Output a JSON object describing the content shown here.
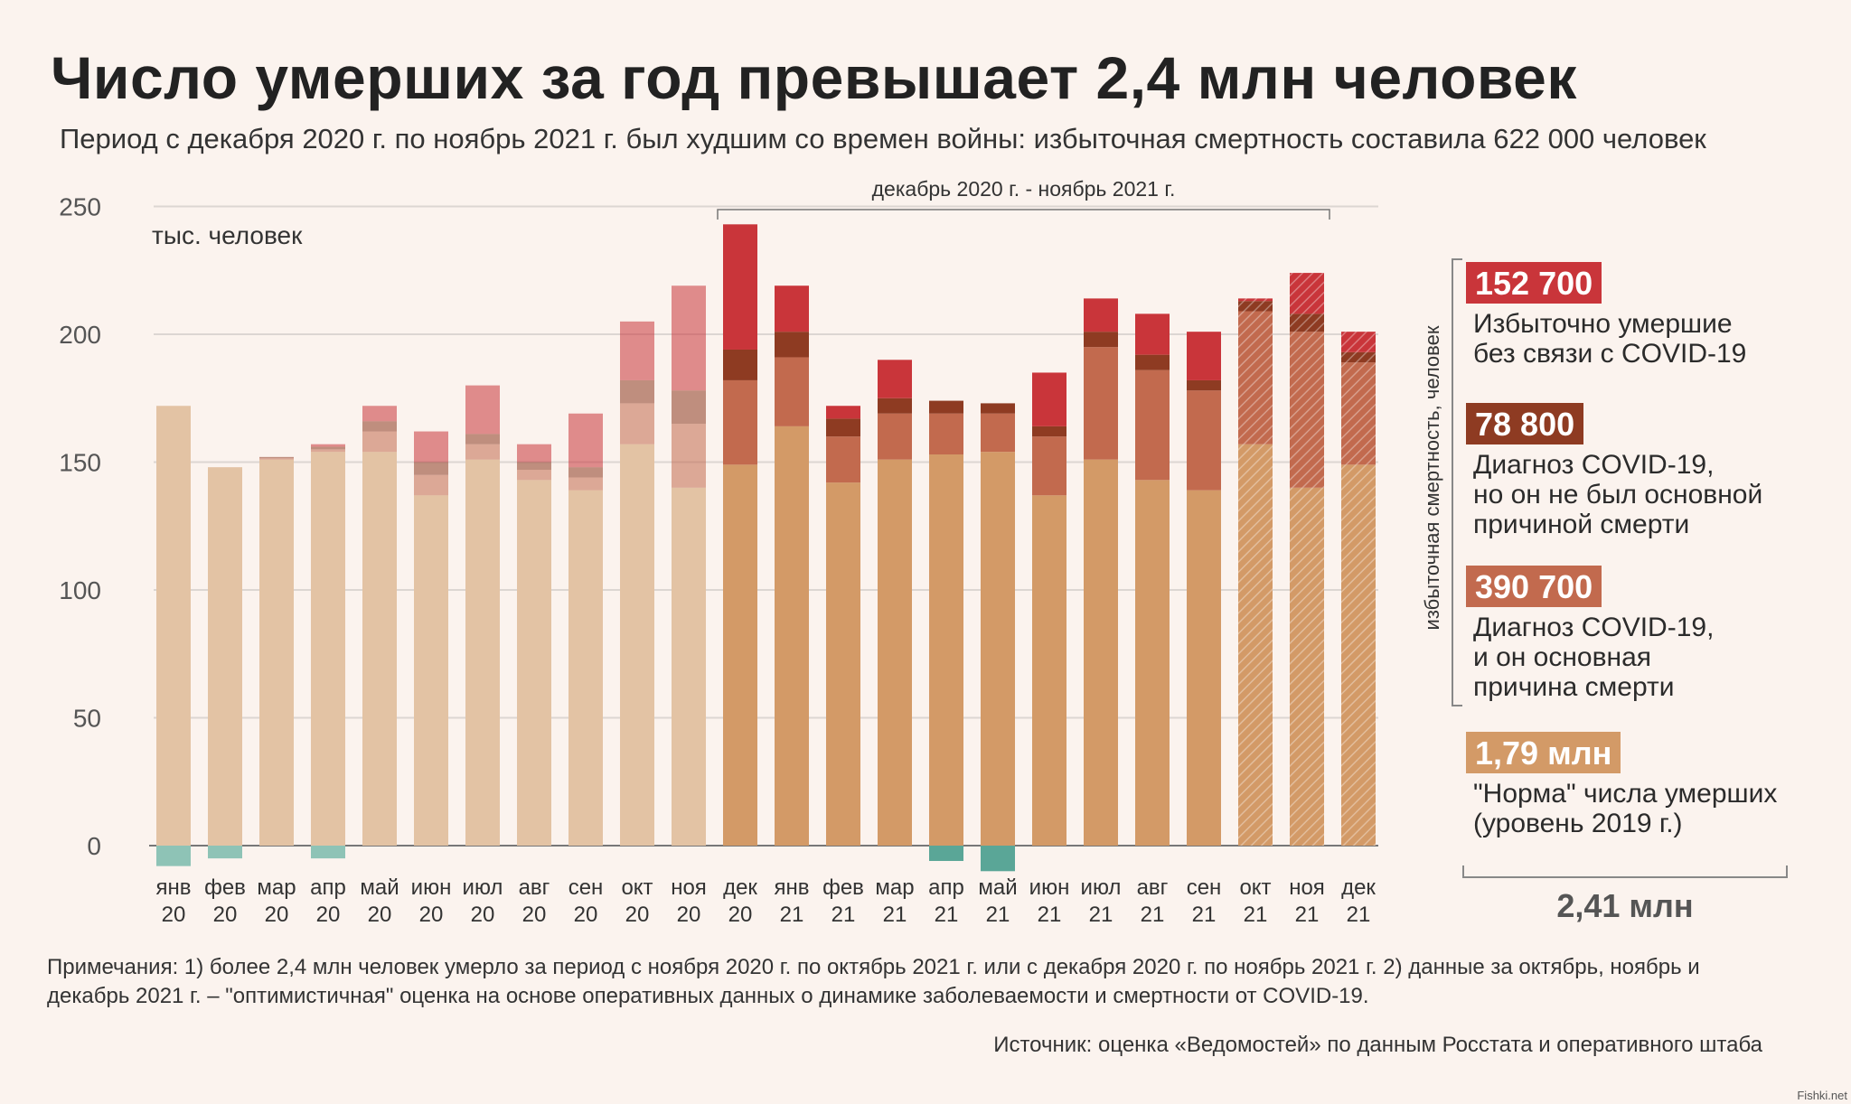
{
  "title": "Число умерших за год превышает 2,4 млн человек",
  "subtitle": "Период с декабря 2020 г. по ноябрь 2021 г. был худшим со времен войны: избыточная смертность составила 622 000 человек",
  "colors": {
    "background": "#fbf3ee",
    "norm_2020": "#e3c3a4",
    "norm_period": "#d39a67",
    "covid_main": "#c26a4e",
    "covid_not_main": "#8e3b22",
    "excess_non_covid": "#c9353a",
    "negative": "#8ec3b6",
    "negative_period": "#5aa697"
  },
  "chart_data": {
    "type": "bar",
    "stacked": true,
    "unit_label": "тыс. человек",
    "ylim": [
      -10,
      250
    ],
    "yticks": [
      0,
      50,
      100,
      150,
      200,
      250
    ],
    "grid": true,
    "period_label": "декабрь 2020 г. - ноябрь 2021 г.",
    "categories": [
      [
        "янв",
        "20"
      ],
      [
        "фев",
        "20"
      ],
      [
        "мар",
        "20"
      ],
      [
        "апр",
        "20"
      ],
      [
        "май",
        "20"
      ],
      [
        "июн",
        "20"
      ],
      [
        "июл",
        "20"
      ],
      [
        "авг",
        "20"
      ],
      [
        "сен",
        "20"
      ],
      [
        "окт",
        "20"
      ],
      [
        "ноя",
        "20"
      ],
      [
        "дек",
        "20"
      ],
      [
        "янв",
        "21"
      ],
      [
        "фев",
        "21"
      ],
      [
        "мар",
        "21"
      ],
      [
        "апр",
        "21"
      ],
      [
        "май",
        "21"
      ],
      [
        "июн",
        "21"
      ],
      [
        "июл",
        "21"
      ],
      [
        "авг",
        "21"
      ],
      [
        "сен",
        "21"
      ],
      [
        "окт",
        "21"
      ],
      [
        "ноя",
        "21"
      ],
      [
        "дек",
        "21"
      ]
    ],
    "series": [
      {
        "name": "\"Норма\" числа умерших (уровень 2019 г.)",
        "key": "norm",
        "values": [
          172,
          148,
          151,
          154,
          154,
          137,
          151,
          143,
          139,
          157,
          140,
          149,
          164,
          142,
          151,
          153,
          154,
          137,
          151,
          143,
          139,
          157,
          140,
          149
        ]
      },
      {
        "name": "Диагноз COVID-19, и он основная причина смерти",
        "key": "covid_main",
        "values": [
          0,
          0,
          0.5,
          1,
          8,
          8,
          6,
          4,
          5,
          16,
          25,
          33,
          27,
          18,
          18,
          16,
          15,
          23,
          44,
          43,
          39,
          52,
          61,
          40
        ]
      },
      {
        "name": "Диагноз COVID-19, но он не был основной причиной смерти",
        "key": "covid_not_main",
        "values": [
          0,
          0,
          0.5,
          1,
          4,
          5,
          4,
          3,
          4,
          9,
          13,
          12,
          10,
          7,
          6,
          5,
          4,
          4,
          6,
          6,
          4,
          4,
          7,
          4
        ]
      },
      {
        "name": "Избыточно умершие без связи с COVID-19",
        "key": "excess_non_covid",
        "values": [
          0,
          0,
          0,
          1,
          6,
          12,
          19,
          7,
          21,
          23,
          41,
          49,
          18,
          5,
          15,
          0,
          0,
          21,
          13,
          16,
          19,
          1,
          16,
          8
        ]
      }
    ],
    "negative_values": [
      -8,
      -5,
      0,
      -5,
      0,
      0,
      0,
      0,
      0,
      0,
      0,
      0,
      0,
      0,
      0,
      -6,
      -10,
      0,
      0,
      0,
      0,
      0,
      0,
      0
    ]
  },
  "legend": [
    {
      "value": "152 700",
      "label_lines": [
        "Избыточно умершие",
        "без связи с COVID-19"
      ],
      "color": "#c9353a"
    },
    {
      "value": "78 800",
      "label_lines": [
        "Диагноз  COVID-19,",
        "но он не был основной",
        "причиной смерти"
      ],
      "color": "#8e3b22"
    },
    {
      "value": "390 700",
      "label_lines": [
        "Диагноз  COVID-19,",
        "и он основная",
        "причина смерти"
      ],
      "color": "#c26a4e"
    },
    {
      "value": "1,79 млн",
      "label_lines": [
        "\"Норма\" числа умерших",
        "(уровень 2019 г.)"
      ],
      "color": "#d39a67"
    }
  ],
  "legend_axis_label": "избыточная смертность, человек",
  "total": "2,41 млн",
  "notes": "Примечания: 1) более 2,4 млн человек умерло за период с ноября 2020 г. по октябрь 2021 г. или с декабря 2020 г. по ноябрь 2021 г. 2) данные за октябрь, ноябрь и декабрь 2021 г. – \"оптимистичная\" оценка на основе оперативных данных о динамике заболеваемости и смертности от COVID-19.",
  "source": "Источник: оценка «Ведомостей» по данным Росстата и оперативного штаба",
  "watermark": "Fishki.net"
}
